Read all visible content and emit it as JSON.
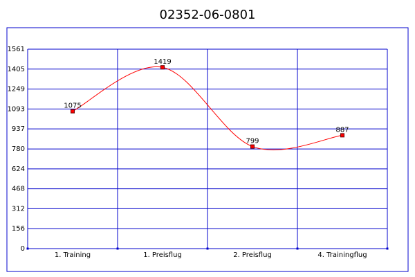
{
  "chart_data": {
    "type": "line",
    "title": "02352-06-0801",
    "categories": [
      "1. Training",
      "1. Preisflug",
      "2. Preisflug",
      "4. Trainingflug"
    ],
    "series": [
      {
        "color": "#ff0000",
        "values": [
          1075,
          1419,
          799,
          887
        ]
      }
    ],
    "ylim": [
      0,
      1561
    ],
    "yticks": [
      0,
      156,
      312,
      468,
      624,
      780,
      937,
      1093,
      1249,
      1405,
      1561
    ],
    "grid": true,
    "grid_color": "#0000cc",
    "smooth": true
  }
}
